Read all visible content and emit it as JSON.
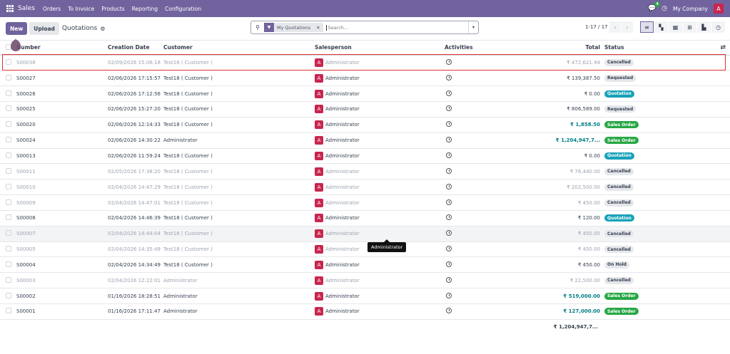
{
  "nav": {
    "app": "Sales",
    "menu": [
      "Orders",
      "To Invoice",
      "Products",
      "Reporting",
      "Configuration"
    ],
    "chat_count": "4",
    "company": "My Company",
    "user_initial": "A"
  },
  "control": {
    "new": "New",
    "upload": "Upload",
    "title": "Quotations",
    "facet": "My Quotations",
    "search_placeholder": "Search...",
    "pager": "1-17 / 17"
  },
  "columns": {
    "number": "Number",
    "date": "Creation Date",
    "customer": "Customer",
    "salesperson": "Salesperson",
    "activities": "Activities",
    "total": "Total",
    "status": "Status"
  },
  "rows": [
    {
      "number": "S00038",
      "date": "02/09/2026 15:06:18",
      "customer": "Test18 ( Customer )",
      "salesperson": "Administrator",
      "total": "₹ 472,621.94",
      "status": "Cancelled",
      "kind": "cancel"
    },
    {
      "number": "S00027",
      "date": "02/06/2026 17:15:57",
      "customer": "Test18 ( Customer )",
      "salesperson": "Administrator",
      "total": "₹ 139,387.50",
      "status": "Requested",
      "kind": "grey"
    },
    {
      "number": "S00026",
      "date": "02/06/2026 17:12:56",
      "customer": "Test18 ( Customer )",
      "salesperson": "Administrator",
      "total": "₹ 0.00",
      "status": "Quotation",
      "kind": "quotation"
    },
    {
      "number": "S00025",
      "date": "02/06/2026 15:27:20",
      "customer": "Test18 ( Customer )",
      "salesperson": "Administrator",
      "total": "₹ 806,589.00",
      "status": "Requested",
      "kind": "grey"
    },
    {
      "number": "S00020",
      "date": "02/06/2026 12:14:33",
      "customer": "Test18 ( Customer )",
      "salesperson": "Administrator",
      "total": "₹ 1,858.50",
      "status": "Sales Order",
      "kind": "sale"
    },
    {
      "number": "S00024",
      "date": "02/06/2026 14:30:22",
      "customer": "Administrator",
      "salesperson": "Administrator",
      "total": "₹ 1,204,947,7...",
      "status": "Sales Order",
      "kind": "sale"
    },
    {
      "number": "S00013",
      "date": "02/06/2026 11:59:24",
      "customer": "Test18 ( Customer )",
      "salesperson": "Administrator",
      "total": "₹ 0.00",
      "status": "Quotation",
      "kind": "quotation"
    },
    {
      "number": "S00011",
      "date": "02/05/2026 17:38:20",
      "customer": "Test18 ( Customer )",
      "salesperson": "Administrator",
      "total": "₹ 76,440.00",
      "status": "Cancelled",
      "kind": "cancel"
    },
    {
      "number": "S00010",
      "date": "02/04/2026 14:47:29",
      "customer": "Test18 ( Customer )",
      "salesperson": "Administrator",
      "total": "₹ 202,500.00",
      "status": "Cancelled",
      "kind": "cancel"
    },
    {
      "number": "S00009",
      "date": "02/04/2026 14:47:01",
      "customer": "Test18 ( Customer )",
      "salesperson": "Administrator",
      "total": "₹ 450.00",
      "status": "Cancelled",
      "kind": "cancel"
    },
    {
      "number": "S00008",
      "date": "02/04/2026 14:46:39",
      "customer": "Test18 ( Customer )",
      "salesperson": "Administrator",
      "total": "₹ 120.00",
      "status": "Quotation",
      "kind": "quotation"
    },
    {
      "number": "S00007",
      "date": "02/04/2026 14:44:04",
      "customer": "Test18 ( Customer )",
      "salesperson": "Administrator",
      "total": "₹ 450.00",
      "status": "Cancelled",
      "kind": "cancel"
    },
    {
      "number": "S00005",
      "date": "02/04/2026 14:35:49",
      "customer": "Test18 ( Customer )",
      "salesperson": "Administrator",
      "total": "₹ 450.00",
      "status": "Cancelled",
      "kind": "cancel"
    },
    {
      "number": "S00004",
      "date": "02/04/2026 14:34:49",
      "customer": "Test18 ( Customer )",
      "salesperson": "Administrator",
      "total": "₹ 450.00",
      "status": "On Hold",
      "kind": "grey"
    },
    {
      "number": "S00003",
      "date": "02/04/2026 12:22:01",
      "customer": "Administrator",
      "salesperson": "Administrator",
      "total": "₹ 22,500.00",
      "status": "Cancelled",
      "kind": "cancel"
    },
    {
      "number": "S00002",
      "date": "01/16/2026 18:28:51",
      "customer": "Administrator",
      "salesperson": "Administrator",
      "total": "₹ 519,000.00",
      "status": "Sales Order",
      "kind": "sale"
    },
    {
      "number": "S00001",
      "date": "01/16/2026 17:11:47",
      "customer": "Administrator",
      "salesperson": "Administrator",
      "total": "₹ 127,000.00",
      "status": "Sales Order",
      "kind": "sale"
    }
  ],
  "footer_total": "₹ 1,204,947,7...",
  "tooltip": "Administrator",
  "colors": {
    "brand": "#71639e",
    "avatar": "#c8264f",
    "quotation": "#17a2b8",
    "sales_order": "#28a745",
    "highlight": "#e03131"
  }
}
